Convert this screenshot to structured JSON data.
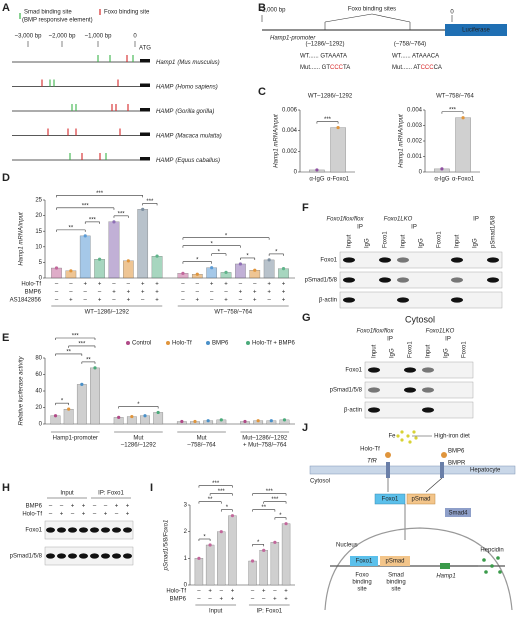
{
  "panels": {
    "A": {
      "letter": "A",
      "legend": {
        "smad": "Smad binding site",
        "bre": "(BMP responsive element)",
        "foxo": "Foxo binding site"
      },
      "scale": [
        "~3,000 bp",
        "~2,000 bp",
        "~1,000 bp",
        "0"
      ],
      "atg": "ATG",
      "genes": [
        [
          "Hamp1",
          "(Mus musculus)"
        ],
        [
          "HAMP",
          "(Homo sapiens)"
        ],
        [
          "HAMP",
          "(Gorilla gorilla)"
        ],
        [
          "HAMP",
          "(Macaca mulatta)"
        ],
        [
          "HAMP",
          "(Equus caballus)"
        ]
      ]
    },
    "B": {
      "letter": "B",
      "left": "~2,000 bp",
      "sites": "Foxo binding sites",
      "zero": "0",
      "promoter": "Hamp1-promoter",
      "luc": "Luciferase",
      "s1": "(–1286/–1292)",
      "s2": "(–758/–764)",
      "wt1": "WT...... GTAAATA",
      "mut1": [
        "Mut...... GT",
        "CCC",
        "TA"
      ],
      "wt2": "WT...... ATAAACA",
      "mut2": [
        "Mut...... AT",
        "CCC",
        "CA"
      ]
    },
    "C": {
      "letter": "C",
      "ylabel": "Hamp1 mRNA/input",
      "charts": [
        {
          "title": "WT–1286/–1292",
          "categories": [
            "α-IgG",
            "α-Foxo1"
          ],
          "values": [
            [
              0.0002,
              0.0043
            ]
          ],
          "colors": [
            "#8e4fa0",
            "#e0953c"
          ],
          "bar_fill": "#d0d0d0",
          "ylim": [
            0,
            0.006
          ],
          "yticks": [
            0,
            0.002,
            0.004,
            0.006
          ],
          "sigs": [
            {
              "a": 0,
              "b": 1,
              "label": "***"
            }
          ]
        },
        {
          "title": "WT–758/–764",
          "categories": [
            "α-IgG",
            "α-Foxo1"
          ],
          "values": [
            [
              0.0002,
              0.0035
            ]
          ],
          "colors": [
            "#8e4fa0",
            "#e0953c"
          ],
          "bar_fill": "#d0d0d0",
          "ylim": [
            0,
            0.004
          ],
          "yticks": [
            0,
            0.001,
            0.002,
            0.003,
            0.004
          ],
          "sigs": [
            {
              "a": 0,
              "b": 1,
              "label": "***"
            }
          ]
        }
      ]
    },
    "D": {
      "letter": "D",
      "ylabel": "Hamp1 mRNA/input",
      "ylim": [
        0,
        25
      ],
      "yticks": [
        0,
        5,
        10,
        15,
        20,
        25
      ],
      "colors": [
        "#c2679b",
        "#e0953c",
        "#5b9bd5",
        "#5fb48a",
        "#8e6fb5",
        "#e0953c",
        "#7d8fa0",
        "#5fb48a"
      ],
      "values": [
        [
          3.2,
          2.3,
          13.5,
          6,
          18,
          5.5,
          22,
          7
        ],
        [
          1.5,
          1.2,
          3.3,
          1.8,
          4.5,
          2.5,
          5.8,
          3
        ]
      ],
      "groups": [
        [
          "WT–1286/–1292"
        ],
        [
          "WT–758/–764"
        ]
      ],
      "rows": [
        {
          "name": "Holo-Tf",
          "signs": [
            "–",
            "–",
            "+",
            "+",
            "–",
            "–",
            "+",
            "+",
            "–",
            "–",
            "+",
            "+",
            "–",
            "–",
            "+",
            "+"
          ]
        },
        {
          "name": "BMP6",
          "signs": [
            "–",
            "–",
            "–",
            "–",
            "+",
            "+",
            "+",
            "+",
            "–",
            "–",
            "–",
            "–",
            "+",
            "+",
            "+",
            "+"
          ]
        },
        {
          "name": "AS1842856",
          "signs": [
            "–",
            "+",
            "–",
            "+",
            "–",
            "+",
            "–",
            "+",
            "–",
            "+",
            "–",
            "+",
            "–",
            "+",
            "–",
            "+"
          ]
        }
      ],
      "sigs": [
        {
          "a": 0,
          "b": 2,
          "label": "**"
        },
        {
          "a": 2,
          "b": 3,
          "label": "***"
        },
        {
          "a": 4,
          "b": 5,
          "label": "***"
        },
        {
          "a": 6,
          "b": 7,
          "label": "***"
        },
        {
          "a": 0,
          "b": 4,
          "label": "***"
        },
        {
          "a": 0,
          "b": 6,
          "label": "***"
        },
        {
          "a": 8,
          "b": 10,
          "label": "*"
        },
        {
          "a": 10,
          "b": 11,
          "label": "*"
        },
        {
          "a": 12,
          "b": 13,
          "label": "*"
        },
        {
          "a": 14,
          "b": 15,
          "label": "*"
        },
        {
          "a": 8,
          "b": 12,
          "label": "*"
        },
        {
          "a": 8,
          "b": 14,
          "label": "*"
        }
      ]
    },
    "E": {
      "letter": "E",
      "ylabel": "Relative luciferase activity",
      "ylim": [
        0,
        80
      ],
      "yticks": [
        0,
        20,
        40,
        60,
        80
      ],
      "legend": [
        "Control",
        "Holo-Tf",
        "BMP6",
        "Holo-Tf + BMP6"
      ],
      "colors": [
        "#b04a87",
        "#e0953c",
        "#4a90c8",
        "#4aaa7a"
      ],
      "bar_fill": "#cfcfcf",
      "values": [
        [
          10,
          18,
          48,
          68
        ],
        [
          8,
          9,
          10,
          14
        ],
        [
          3,
          3,
          4,
          5
        ],
        [
          3,
          4,
          4,
          5
        ]
      ],
      "groups": [
        [
          "Hamp1-promoter"
        ],
        [
          "Mut",
          "–1286/–1292"
        ],
        [
          "Mut",
          "–758/–764"
        ],
        [
          "Mut–1286/–1292",
          "+ Mut–758/–764"
        ]
      ],
      "sigs": [
        {
          "a": 0,
          "b": 1,
          "label": "*"
        },
        {
          "a": 2,
          "b": 3,
          "label": "**"
        },
        {
          "a": 0,
          "b": 2,
          "label": "**"
        },
        {
          "a": 1,
          "b": 3,
          "label": "***"
        },
        {
          "a": 0,
          "b": 3,
          "label": "***"
        },
        {
          "a": 4,
          "b": 7,
          "label": "*"
        }
      ]
    },
    "F": {
      "letter": "F",
      "g1": "Foxo1flox/flox",
      "g2": "Foxo1LKO",
      "ip": "IP",
      "lanes": [
        "Input",
        "IgG",
        "Foxo1",
        "Input",
        "IgG",
        "Foxo1",
        "Input",
        "IgG",
        "pSmad1/5/8"
      ],
      "rows": [
        "Foxo1",
        "pSmad1/5/8",
        "β-actin"
      ]
    },
    "G": {
      "letter": "G",
      "title": "Cytosol",
      "g1": "Foxo1flox/flox",
      "g2": "Foxo1LKO",
      "ip": "IP",
      "lanes": [
        "Input",
        "IgG",
        "Foxo1",
        "Input",
        "IgG",
        "Foxo1"
      ],
      "rows": [
        "Foxo1",
        "pSmad1/5/8",
        "β-actin"
      ]
    },
    "H": {
      "letter": "H",
      "g1": "Input",
      "g2": "IP: Foxo1",
      "rows": [
        {
          "name": "BMP6",
          "signs": [
            "–",
            "–",
            "+",
            "+",
            "–",
            "–",
            "+",
            "+"
          ]
        },
        {
          "name": "Holo-Tf",
          "signs": [
            "–",
            "+",
            "–",
            "+",
            "–",
            "+",
            "–",
            "+"
          ]
        }
      ],
      "blots": [
        "Foxo1",
        "pSmad1/5/8"
      ]
    },
    "I": {
      "letter": "I",
      "ylabel": "pSmad1/5/8/Foxo1",
      "ylim": [
        0,
        3
      ],
      "yticks": [
        0,
        1,
        2,
        3
      ],
      "colors": [
        "#c2679b",
        "#c2679b",
        "#c2679b",
        "#c2679b"
      ],
      "bar_fill": "#cfcfcf",
      "values": [
        [
          1,
          1.5,
          2,
          2.6
        ],
        [
          0.9,
          1.3,
          1.6,
          2.3
        ]
      ],
      "groups": [
        [
          "Input"
        ],
        [
          "IP: Foxo1"
        ]
      ],
      "rows": [
        {
          "name": "Holo-Tf",
          "signs": [
            "–",
            "+",
            "–",
            "+",
            "–",
            "+",
            "–",
            "+"
          ]
        },
        {
          "name": "BMP6",
          "signs": [
            "–",
            "–",
            "+",
            "+",
            "–",
            "–",
            "+",
            "+"
          ]
        }
      ],
      "sigs": [
        {
          "a": 0,
          "b": 1,
          "label": "*"
        },
        {
          "a": 2,
          "b": 3,
          "label": "*"
        },
        {
          "a": 0,
          "b": 2,
          "label": "**"
        },
        {
          "a": 1,
          "b": 3,
          "label": "***"
        },
        {
          "a": 0,
          "b": 3,
          "label": "***"
        },
        {
          "a": 4,
          "b": 5,
          "label": "*"
        },
        {
          "a": 6,
          "b": 7,
          "label": "*"
        },
        {
          "a": 4,
          "b": 6,
          "label": "**"
        },
        {
          "a": 5,
          "b": 7,
          "label": "***"
        },
        {
          "a": 4,
          "b": 7,
          "label": "***"
        }
      ]
    },
    "J": {
      "letter": "J",
      "fe": "Fe",
      "diet": "High-iron diet",
      "holo": "Holo-Tf",
      "bmp6": "BMP6",
      "tfr": "TfR",
      "bmpr": "BMPR",
      "hep": "Hepatocyte",
      "cyt": "Cytosol",
      "foxo1": "Foxo1",
      "psmad": "pSmad",
      "smad4": "Smad4",
      "nuc": "Nucleus",
      "foxo1n": "Foxo1",
      "psmadn": "pSmad",
      "fbs": [
        "Foxo",
        "binding",
        "site"
      ],
      "sbs": [
        "Smad",
        "binding",
        "site"
      ],
      "hamp": "Hamp1",
      "hepcidin": "Hepcidin"
    }
  }
}
